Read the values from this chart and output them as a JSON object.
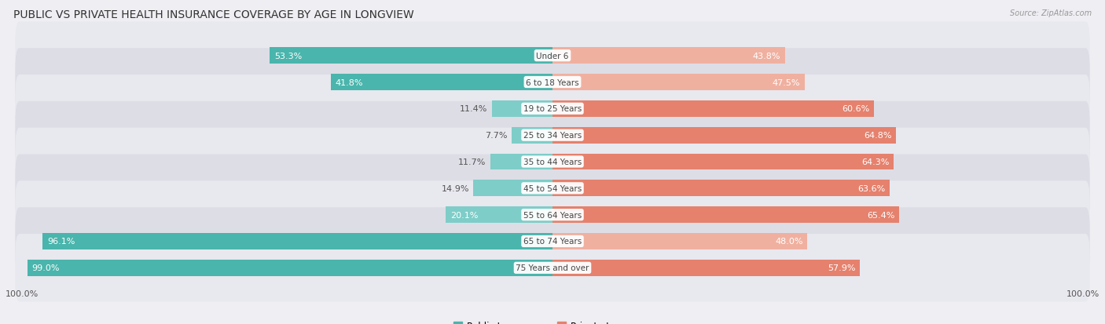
{
  "title": "PUBLIC VS PRIVATE HEALTH INSURANCE COVERAGE BY AGE IN LONGVIEW",
  "source": "Source: ZipAtlas.com",
  "categories": [
    "Under 6",
    "6 to 18 Years",
    "19 to 25 Years",
    "25 to 34 Years",
    "35 to 44 Years",
    "45 to 54 Years",
    "55 to 64 Years",
    "65 to 74 Years",
    "75 Years and over"
  ],
  "public_values": [
    53.3,
    41.8,
    11.4,
    7.7,
    11.7,
    14.9,
    20.1,
    96.1,
    99.0
  ],
  "private_values": [
    43.8,
    47.5,
    60.6,
    64.8,
    64.3,
    63.6,
    65.4,
    48.0,
    57.9
  ],
  "public_color": "#4ab5ac",
  "private_color": "#e5816d",
  "public_color_light": "#7ecdc8",
  "private_color_light": "#f0b0a0",
  "public_label": "Public Insurance",
  "private_label": "Private Insurance",
  "background_color": "#eeeef3",
  "row_colors": [
    "#e8e8ef",
    "#dddde6"
  ],
  "bar_height": 0.62,
  "title_fontsize": 10,
  "label_fontsize": 8,
  "category_fontsize": 7.5,
  "legend_fontsize": 8.5,
  "source_fontsize": 7
}
